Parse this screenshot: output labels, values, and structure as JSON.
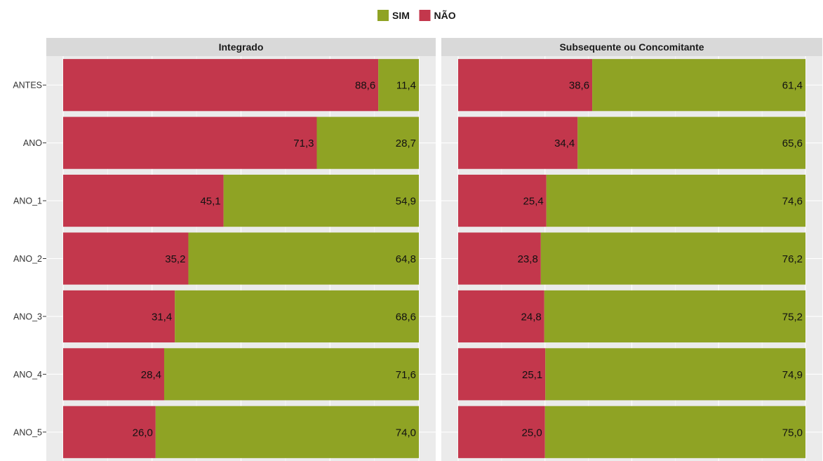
{
  "chart_data": {
    "type": "bar",
    "orientation": "horizontal",
    "stacked": true,
    "normalized_percent": true,
    "legend": {
      "position": "top",
      "entries": [
        {
          "label": "SIM",
          "color": "#8fa324"
        },
        {
          "label": "NÃO",
          "color": "#c3374c"
        }
      ]
    },
    "categories": [
      "ANTES",
      "ANO",
      "ANO_1",
      "ANO_2",
      "ANO_3",
      "ANO_4",
      "ANO_5"
    ],
    "xlim": [
      0,
      100
    ],
    "grid": true,
    "facets": [
      {
        "title": "Integrado",
        "series": [
          {
            "name": "NÃO",
            "values": [
              88.6,
              71.3,
              45.1,
              35.2,
              31.4,
              28.4,
              26.0
            ],
            "labels": [
              "88,6",
              "71,3",
              "45,1",
              "35,2",
              "31,4",
              "28,4",
              "26,0"
            ]
          },
          {
            "name": "SIM",
            "values": [
              11.4,
              28.7,
              54.9,
              64.8,
              68.6,
              71.6,
              74.0
            ],
            "labels": [
              "11,4",
              "28,7",
              "54,9",
              "64,8",
              "68,6",
              "71,6",
              "74,0"
            ]
          }
        ]
      },
      {
        "title": "Subsequente ou Concomitante",
        "series": [
          {
            "name": "NÃO",
            "values": [
              38.6,
              34.4,
              25.4,
              23.8,
              24.8,
              25.1,
              25.0
            ],
            "labels": [
              "38,6",
              "34,4",
              "25,4",
              "23,8",
              "24,8",
              "25,1",
              "25,0"
            ]
          },
          {
            "name": "SIM",
            "values": [
              61.4,
              65.6,
              74.6,
              76.2,
              75.2,
              74.9,
              75.0
            ],
            "labels": [
              "61,4",
              "65,6",
              "74,6",
              "76,2",
              "75,2",
              "74,9",
              "75,0"
            ]
          }
        ]
      }
    ],
    "colors": {
      "panel_bg": "#ebebeb",
      "strip_bg": "#d9d9d9",
      "grid": "#ffffff"
    }
  }
}
